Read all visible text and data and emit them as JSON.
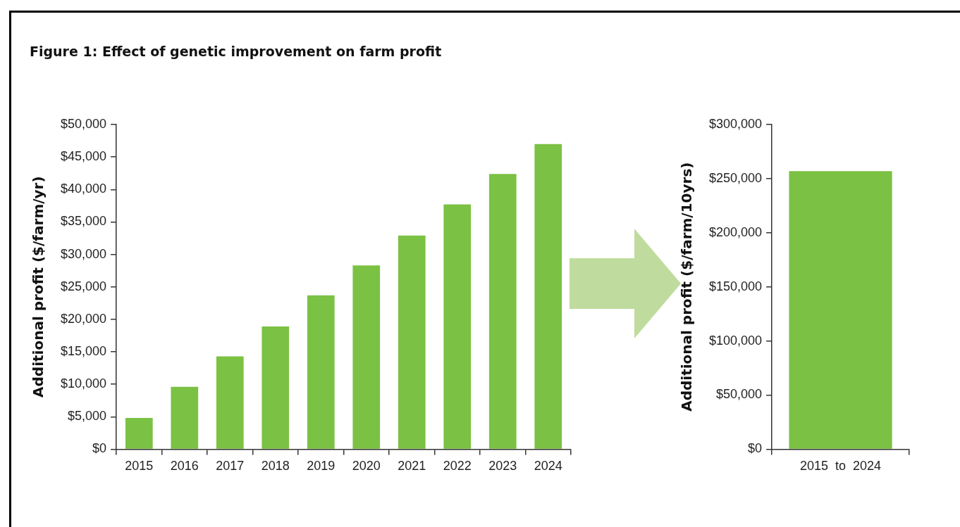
{
  "chart_data": [
    {
      "type": "bar",
      "title": "Figure 1: Effect of genetic improvement on farm profit",
      "ylabel": "Additional profit ($/farm/yr)",
      "categories": [
        "2015",
        "2016",
        "2017",
        "2018",
        "2019",
        "2020",
        "2021",
        "2022",
        "2023",
        "2024"
      ],
      "values": [
        4800,
        9600,
        14300,
        18900,
        23700,
        28300,
        32900,
        37700,
        42400,
        47000
      ],
      "color": "#7bc143",
      "ylim": [
        0,
        50000
      ],
      "yticks": [
        {
          "value": 0,
          "label": "$0"
        },
        {
          "value": 5000,
          "label": "$5,000"
        },
        {
          "value": 10000,
          "label": "$10,000"
        },
        {
          "value": 15000,
          "label": "$15,000"
        },
        {
          "value": 20000,
          "label": "$20,000"
        },
        {
          "value": 25000,
          "label": "$25,000"
        },
        {
          "value": 30000,
          "label": "$30,000"
        },
        {
          "value": 35000,
          "label": "$35,000"
        },
        {
          "value": 40000,
          "label": "$40,000"
        },
        {
          "value": 45000,
          "label": "$45,000"
        },
        {
          "value": 50000,
          "label": "$50,000"
        }
      ]
    },
    {
      "type": "bar",
      "ylabel": "Additional profit ($/farm/10yrs)",
      "categories": [
        "2015  to  2024"
      ],
      "values": [
        257000
      ],
      "color": "#7bc143",
      "ylim": [
        0,
        300000
      ],
      "yticks": [
        {
          "value": 0,
          "label": "$0"
        },
        {
          "value": 50000,
          "label": "$50,000"
        },
        {
          "value": 100000,
          "label": "$100,000"
        },
        {
          "value": 150000,
          "label": "$150,000"
        },
        {
          "value": 200000,
          "label": "$200,000"
        },
        {
          "value": 250000,
          "label": "$250,000"
        },
        {
          "value": 300000,
          "label": "$300,000"
        }
      ]
    }
  ]
}
